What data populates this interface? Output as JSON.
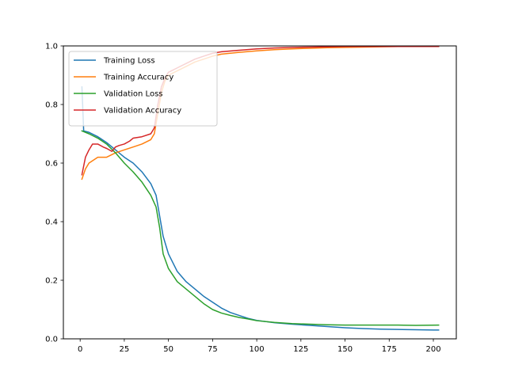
{
  "chart_data": {
    "type": "line",
    "title": "",
    "xlabel": "",
    "ylabel": "",
    "xlim": [
      -9.5,
      213
    ],
    "ylim": [
      0.0,
      1.0
    ],
    "xticks": [
      0,
      25,
      50,
      75,
      100,
      125,
      150,
      175,
      200
    ],
    "yticks": [
      0.0,
      0.2,
      0.4,
      0.6,
      0.8,
      1.0
    ],
    "xtick_labels": [
      "0",
      "25",
      "50",
      "75",
      "100",
      "125",
      "150",
      "175",
      "200"
    ],
    "ytick_labels": [
      "0.0",
      "0.2",
      "0.4",
      "0.6",
      "0.8",
      "1.0"
    ],
    "grid": false,
    "legend_position": "top-left",
    "series": [
      {
        "name": "Training Loss",
        "color": "#1f77b4",
        "points": [
          [
            1,
            0.86
          ],
          [
            2,
            0.71
          ],
          [
            5,
            0.705
          ],
          [
            10,
            0.69
          ],
          [
            15,
            0.67
          ],
          [
            20,
            0.645
          ],
          [
            25,
            0.62
          ],
          [
            30,
            0.6
          ],
          [
            35,
            0.57
          ],
          [
            40,
            0.53
          ],
          [
            43,
            0.49
          ],
          [
            45,
            0.42
          ],
          [
            47,
            0.35
          ],
          [
            50,
            0.29
          ],
          [
            55,
            0.23
          ],
          [
            60,
            0.195
          ],
          [
            65,
            0.17
          ],
          [
            70,
            0.145
          ],
          [
            75,
            0.125
          ],
          [
            80,
            0.105
          ],
          [
            85,
            0.09
          ],
          [
            90,
            0.08
          ],
          [
            95,
            0.07
          ],
          [
            100,
            0.063
          ],
          [
            110,
            0.055
          ],
          [
            120,
            0.05
          ],
          [
            130,
            0.046
          ],
          [
            140,
            0.042
          ],
          [
            150,
            0.038
          ],
          [
            160,
            0.035
          ],
          [
            170,
            0.033
          ],
          [
            180,
            0.032
          ],
          [
            190,
            0.031
          ],
          [
            200,
            0.03
          ],
          [
            203,
            0.03
          ]
        ]
      },
      {
        "name": "Training Accuracy",
        "color": "#ff7f0e",
        "points": [
          [
            1,
            0.545
          ],
          [
            3,
            0.58
          ],
          [
            5,
            0.6
          ],
          [
            10,
            0.62
          ],
          [
            15,
            0.62
          ],
          [
            20,
            0.635
          ],
          [
            25,
            0.645
          ],
          [
            30,
            0.655
          ],
          [
            35,
            0.665
          ],
          [
            40,
            0.68
          ],
          [
            42,
            0.7
          ],
          [
            44,
            0.77
          ],
          [
            46,
            0.84
          ],
          [
            48,
            0.88
          ],
          [
            50,
            0.9
          ],
          [
            55,
            0.915
          ],
          [
            60,
            0.93
          ],
          [
            65,
            0.945
          ],
          [
            70,
            0.955
          ],
          [
            75,
            0.965
          ],
          [
            80,
            0.972
          ],
          [
            90,
            0.978
          ],
          [
            100,
            0.983
          ],
          [
            110,
            0.987
          ],
          [
            120,
            0.99
          ],
          [
            130,
            0.992
          ],
          [
            140,
            0.994
          ],
          [
            150,
            0.995
          ],
          [
            160,
            0.996
          ],
          [
            170,
            0.997
          ],
          [
            180,
            0.998
          ],
          [
            190,
            0.998
          ],
          [
            203,
            0.998
          ]
        ]
      },
      {
        "name": "Validation Loss",
        "color": "#2ca02c",
        "points": [
          [
            1,
            0.71
          ],
          [
            5,
            0.7
          ],
          [
            10,
            0.685
          ],
          [
            15,
            0.665
          ],
          [
            20,
            0.635
          ],
          [
            25,
            0.6
          ],
          [
            30,
            0.57
          ],
          [
            35,
            0.535
          ],
          [
            40,
            0.49
          ],
          [
            43,
            0.45
          ],
          [
            45,
            0.38
          ],
          [
            47,
            0.29
          ],
          [
            50,
            0.24
          ],
          [
            55,
            0.195
          ],
          [
            60,
            0.17
          ],
          [
            65,
            0.145
          ],
          [
            70,
            0.12
          ],
          [
            75,
            0.1
          ],
          [
            80,
            0.088
          ],
          [
            85,
            0.08
          ],
          [
            90,
            0.073
          ],
          [
            95,
            0.068
          ],
          [
            100,
            0.062
          ],
          [
            110,
            0.056
          ],
          [
            120,
            0.052
          ],
          [
            130,
            0.05
          ],
          [
            140,
            0.048
          ],
          [
            150,
            0.047
          ],
          [
            160,
            0.047
          ],
          [
            170,
            0.047
          ],
          [
            180,
            0.047
          ],
          [
            190,
            0.046
          ],
          [
            203,
            0.047
          ]
        ]
      },
      {
        "name": "Validation Accuracy",
        "color": "#d62728",
        "points": [
          [
            1,
            0.56
          ],
          [
            3,
            0.62
          ],
          [
            5,
            0.645
          ],
          [
            7,
            0.665
          ],
          [
            10,
            0.665
          ],
          [
            13,
            0.655
          ],
          [
            15,
            0.65
          ],
          [
            18,
            0.64
          ],
          [
            20,
            0.655
          ],
          [
            22,
            0.66
          ],
          [
            25,
            0.665
          ],
          [
            28,
            0.675
          ],
          [
            30,
            0.685
          ],
          [
            35,
            0.69
          ],
          [
            40,
            0.7
          ],
          [
            42,
            0.72
          ],
          [
            44,
            0.8
          ],
          [
            46,
            0.86
          ],
          [
            48,
            0.89
          ],
          [
            50,
            0.91
          ],
          [
            55,
            0.925
          ],
          [
            60,
            0.94
          ],
          [
            65,
            0.955
          ],
          [
            70,
            0.965
          ],
          [
            75,
            0.975
          ],
          [
            80,
            0.98
          ],
          [
            90,
            0.985
          ],
          [
            100,
            0.99
          ],
          [
            110,
            0.993
          ],
          [
            120,
            0.995
          ],
          [
            130,
            0.996
          ],
          [
            140,
            0.997
          ],
          [
            150,
            0.998
          ],
          [
            160,
            0.998
          ],
          [
            170,
            0.998
          ],
          [
            180,
            0.998
          ],
          [
            190,
            0.998
          ],
          [
            203,
            0.998
          ]
        ]
      }
    ]
  }
}
